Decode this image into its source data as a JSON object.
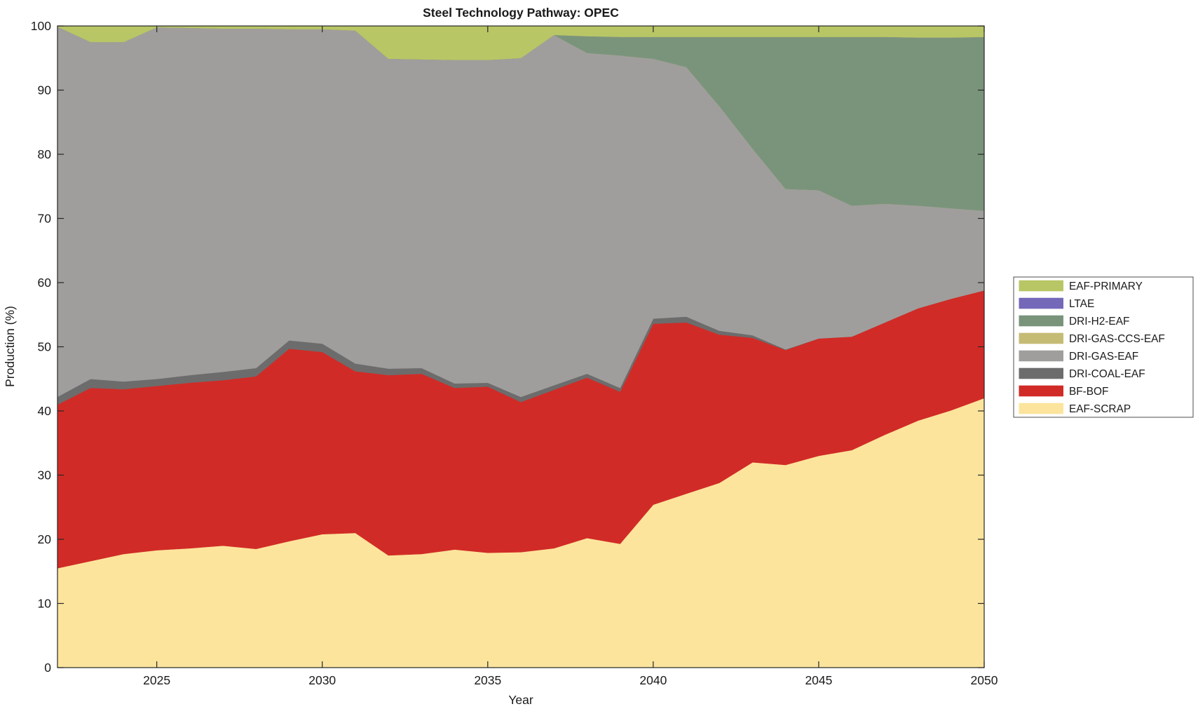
{
  "page": {
    "background": "#ffffff"
  },
  "chart": {
    "title": "Steel Technology Pathway: OPEC",
    "xlabel": "Year",
    "ylabel": "Production (%)",
    "axis_color": "#262626",
    "x_ticks": [
      2025,
      2030,
      2035,
      2040,
      2045,
      2050
    ],
    "y_ticks": [
      0,
      10,
      20,
      30,
      40,
      50,
      60,
      70,
      80,
      90,
      100
    ]
  },
  "chart_data": {
    "type": "area",
    "stacked": true,
    "title": "Steel Technology Pathway: OPEC",
    "xlabel": "Year",
    "ylabel": "Production (%)",
    "xlim": [
      2022,
      2050
    ],
    "ylim": [
      0,
      100
    ],
    "grid": false,
    "legend_position": "right-outside",
    "legend_order_top_first": [
      "EAF-PRIMARY",
      "LTAE",
      "DRI-H2-EAF",
      "DRI-GAS-CCS-EAF",
      "DRI-GAS-EAF",
      "DRI-COAL-EAF",
      "BF-BOF",
      "EAF-SCRAP"
    ],
    "x": [
      2022,
      2023,
      2024,
      2025,
      2026,
      2027,
      2028,
      2029,
      2030,
      2031,
      2032,
      2033,
      2034,
      2035,
      2036,
      2037,
      2038,
      2039,
      2040,
      2041,
      2042,
      2043,
      2044,
      2045,
      2046,
      2047,
      2048,
      2049,
      2050
    ],
    "series": [
      {
        "name": "EAF-SCRAP",
        "color": "#fce49c",
        "values": [
          15.5,
          16.6,
          17.7,
          18.3,
          18.6,
          19.0,
          18.5,
          19.7,
          20.8,
          21.0,
          17.5,
          17.7,
          18.4,
          17.9,
          18.0,
          18.6,
          20.2,
          19.3,
          25.4,
          27.1,
          28.8,
          32.0,
          31.6,
          33.0,
          33.9,
          36.3,
          38.5,
          40.1,
          42.0
        ]
      },
      {
        "name": "BF-BOF",
        "color": "#d12b27",
        "values": [
          25.5,
          27.0,
          25.7,
          25.6,
          25.8,
          25.8,
          26.9,
          30.0,
          28.4,
          25.2,
          28.1,
          28.1,
          25.2,
          25.9,
          23.4,
          24.7,
          25.0,
          23.7,
          28.2,
          26.7,
          23.1,
          19.4,
          17.9,
          18.3,
          17.7,
          17.5,
          17.5,
          17.4,
          16.8
        ]
      },
      {
        "name": "DRI-COAL-EAF",
        "color": "#6d6c6c",
        "values": [
          1.2,
          1.4,
          1.2,
          1.1,
          1.2,
          1.3,
          1.3,
          1.3,
          1.3,
          1.2,
          1.0,
          0.9,
          0.7,
          0.6,
          0.8,
          0.7,
          0.6,
          0.6,
          0.8,
          0.9,
          0.6,
          0.4,
          0.1,
          0,
          0,
          0,
          0,
          0,
          0
        ]
      },
      {
        "name": "DRI-GAS-EAF",
        "color": "#a09e9c",
        "values": [
          57.7,
          52.5,
          52.9,
          54.8,
          54.1,
          53.5,
          52.9,
          48.5,
          49.0,
          51.9,
          48.3,
          48.1,
          50.4,
          50.3,
          52.8,
          54.6,
          50.0,
          51.8,
          40.5,
          38.9,
          35.0,
          29.1,
          25.0,
          23.1,
          20.4,
          18.5,
          16.0,
          14.1,
          12.4
        ]
      },
      {
        "name": "DRI-GAS-CCS-EAF",
        "color": "#c5bb75",
        "values": [
          0,
          0,
          0,
          0,
          0,
          0,
          0,
          0,
          0,
          0,
          0,
          0,
          0,
          0,
          0,
          0,
          0,
          0,
          0,
          0,
          0,
          0,
          0,
          0,
          0,
          0,
          0,
          0,
          0
        ]
      },
      {
        "name": "DRI-H2-EAF",
        "color": "#7a947c",
        "values": [
          0,
          0,
          0,
          0,
          0,
          0,
          0,
          0,
          0,
          0,
          0,
          0,
          0,
          0,
          0,
          0,
          2.6,
          2.9,
          3.4,
          4.7,
          10.8,
          17.4,
          23.7,
          23.9,
          26.3,
          26.0,
          26.2,
          26.6,
          27.1
        ]
      },
      {
        "name": "LTAE",
        "color": "#7468b9",
        "values": [
          0,
          0,
          0,
          0,
          0,
          0,
          0,
          0,
          0,
          0,
          0,
          0,
          0,
          0,
          0,
          0,
          0,
          0,
          0,
          0,
          0,
          0,
          0,
          0,
          0,
          0,
          0,
          0,
          0
        ]
      },
      {
        "name": "EAF-PRIMARY",
        "color": "#b9c665",
        "values": [
          0.1,
          2.5,
          2.5,
          0.2,
          0.3,
          0.4,
          0.4,
          0.5,
          0.5,
          0.7,
          5.1,
          5.2,
          5.3,
          5.3,
          5.0,
          1.4,
          1.6,
          1.7,
          1.7,
          1.7,
          1.7,
          1.7,
          1.7,
          1.7,
          1.7,
          1.7,
          1.8,
          1.8,
          1.7
        ]
      }
    ]
  }
}
